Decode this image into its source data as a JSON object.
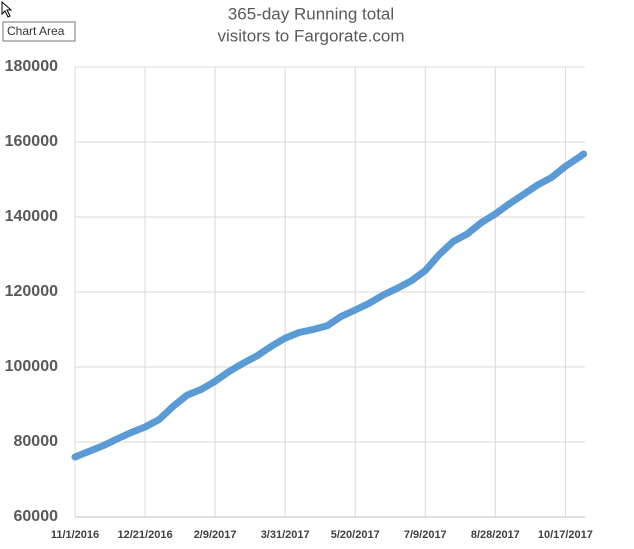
{
  "tooltip": "Chart Area",
  "chart_data": {
    "type": "line",
    "title": [
      "365-day Running total",
      "visitors to Fargorate.com"
    ],
    "x": [
      "2016-11-01",
      "2016-11-11",
      "2016-11-21",
      "2016-12-01",
      "2016-12-11",
      "2016-12-21",
      "2016-12-31",
      "2017-01-10",
      "2017-01-20",
      "2017-01-30",
      "2017-02-09",
      "2017-02-19",
      "2017-03-01",
      "2017-03-11",
      "2017-03-21",
      "2017-03-31",
      "2017-04-10",
      "2017-04-20",
      "2017-04-30",
      "2017-05-10",
      "2017-05-20",
      "2017-05-30",
      "2017-06-09",
      "2017-06-19",
      "2017-06-29",
      "2017-07-09",
      "2017-07-19",
      "2017-07-29",
      "2017-08-08",
      "2017-08-18",
      "2017-08-28",
      "2017-09-07",
      "2017-09-17",
      "2017-09-27",
      "2017-10-07",
      "2017-10-17",
      "2017-10-27",
      "2017-10-30"
    ],
    "series": [
      {
        "name": "Running total",
        "color": "#5b9bd5",
        "values": [
          76000,
          77500,
          79000,
          80800,
          82500,
          84000,
          86000,
          89500,
          92500,
          94000,
          96200,
          98800,
          101000,
          103000,
          105500,
          107700,
          109200,
          110000,
          111000,
          113500,
          115200,
          117000,
          119200,
          121000,
          123000,
          125700,
          130000,
          133500,
          135500,
          138500,
          140800,
          143500,
          146000,
          148500,
          150500,
          153500,
          156000,
          156800
        ]
      }
    ],
    "xlim": [
      "2016-11-01",
      "2017-10-31"
    ],
    "xticks": [
      {
        "value": "2016-11-01",
        "label": "11/1/2016"
      },
      {
        "value": "2016-12-21",
        "label": "12/21/2016"
      },
      {
        "value": "2017-02-09",
        "label": "2/9/2017"
      },
      {
        "value": "2017-03-31",
        "label": "3/31/2017"
      },
      {
        "value": "2017-05-20",
        "label": "5/20/2017"
      },
      {
        "value": "2017-07-09",
        "label": "7/9/2017"
      },
      {
        "value": "2017-08-28",
        "label": "8/28/2017"
      },
      {
        "value": "2017-10-17",
        "label": "10/17/2017"
      }
    ],
    "ylim": [
      60000,
      180000
    ],
    "yticks": [
      60000,
      80000,
      100000,
      120000,
      140000,
      160000,
      180000
    ],
    "grid": true
  }
}
